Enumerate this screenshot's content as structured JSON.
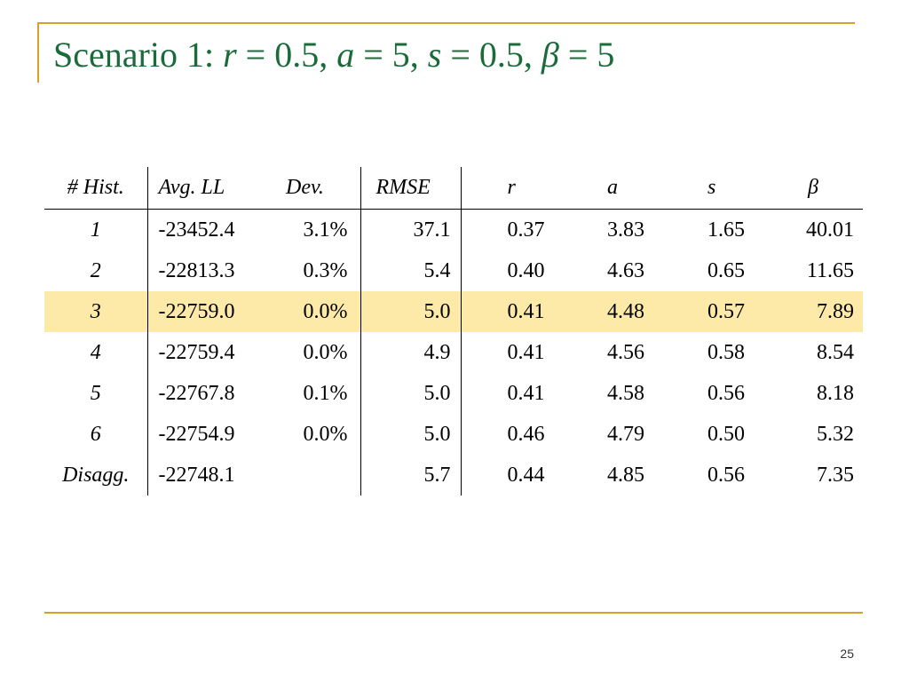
{
  "header": {
    "title": [
      "Scenario 1: ",
      "r",
      " = 0.5, ",
      "a",
      " = 5, ",
      "s",
      " = 0.5, ",
      "β",
      " = 5"
    ]
  },
  "table": {
    "columns": [
      "# Hist.",
      "Avg. LL",
      "Dev.",
      "RMSE",
      "r",
      "a",
      "s",
      "β"
    ],
    "highlight_row": 2,
    "rows": [
      [
        "1",
        "-23452.4",
        "3.1%",
        "37.1",
        "0.37",
        "3.83",
        "1.65",
        "40.01"
      ],
      [
        "2",
        "-22813.3",
        "0.3%",
        "5.4",
        "0.40",
        "4.63",
        "0.65",
        "11.65"
      ],
      [
        "3",
        "-22759.0",
        "0.0%",
        "5.0",
        "0.41",
        "4.48",
        "0.57",
        "7.89"
      ],
      [
        "4",
        "-22759.4",
        "0.0%",
        "4.9",
        "0.41",
        "4.56",
        "0.58",
        "8.54"
      ],
      [
        "5",
        "-22767.8",
        "0.1%",
        "5.0",
        "0.41",
        "4.58",
        "0.56",
        "8.18"
      ],
      [
        "6",
        "-22754.9",
        "0.0%",
        "5.0",
        "0.46",
        "4.79",
        "0.50",
        "5.32"
      ],
      [
        "Disagg.",
        "-22748.1",
        null,
        "5.7",
        "0.44",
        "4.85",
        "0.56",
        "7.35"
      ]
    ]
  },
  "footer": {
    "page_number": "25"
  }
}
